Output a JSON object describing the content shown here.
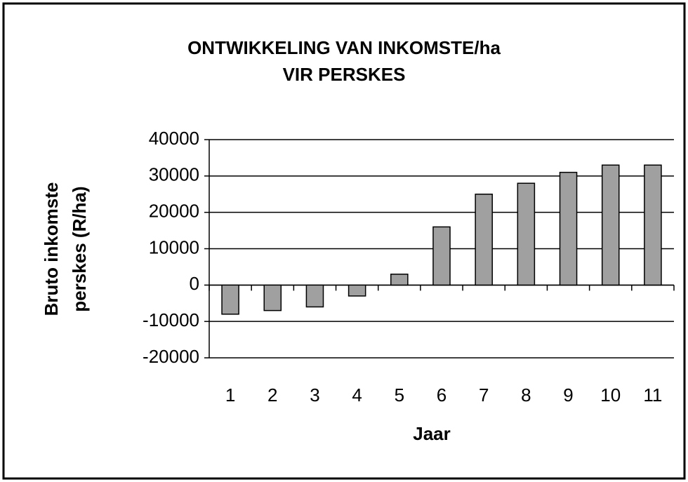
{
  "chart_data": {
    "type": "bar",
    "title": [
      "ONTWIKKELING VAN INKOMSTE/ha",
      "VIR PERSKES"
    ],
    "y_label": [
      "Bruto inkomste",
      "perskes (R/ha)"
    ],
    "x_label": "Jaar",
    "categories": [
      "1",
      "2",
      "3",
      "4",
      "5",
      "6",
      "7",
      "8",
      "9",
      "10",
      "11"
    ],
    "values": [
      -8000,
      -7000,
      -6000,
      -3000,
      3000,
      16000,
      25000,
      28000,
      31000,
      33000,
      33000
    ],
    "color": "#a0a0a0",
    "ylim": [
      -20000,
      40000
    ],
    "yticks": [
      -20000,
      -10000,
      0,
      10000,
      20000,
      30000,
      40000
    ],
    "grid": true
  }
}
